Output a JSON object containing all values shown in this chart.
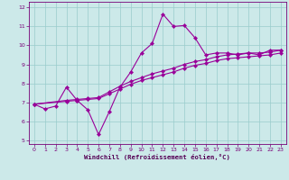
{
  "xlabel": "Windchill (Refroidissement éolien,°C)",
  "bg_color": "#cce9e9",
  "grid_color": "#99cccc",
  "line_color": "#990099",
  "xlim": [
    -0.5,
    23.5
  ],
  "ylim": [
    4.8,
    12.3
  ],
  "yticks": [
    5,
    6,
    7,
    8,
    9,
    10,
    11,
    12
  ],
  "xticks": [
    0,
    1,
    2,
    3,
    4,
    5,
    6,
    7,
    8,
    9,
    10,
    11,
    12,
    13,
    14,
    15,
    16,
    17,
    18,
    19,
    20,
    21,
    22,
    23
  ],
  "line1_x": [
    0,
    1,
    2,
    3,
    4,
    5,
    6,
    7,
    8,
    9,
    10,
    11,
    12,
    13,
    14,
    15,
    16,
    17,
    18,
    19,
    20,
    21,
    22,
    23
  ],
  "line1_y": [
    6.9,
    6.65,
    6.8,
    7.8,
    7.1,
    6.6,
    5.3,
    6.5,
    7.8,
    8.6,
    9.6,
    10.1,
    11.65,
    11.0,
    11.05,
    10.4,
    9.5,
    9.6,
    9.6,
    9.5,
    9.6,
    9.5,
    9.75,
    9.75
  ],
  "line2_x": [
    0,
    3,
    4,
    5,
    6,
    7,
    8,
    9,
    10,
    11,
    12,
    13,
    14,
    15,
    16,
    17,
    18,
    19,
    20,
    21,
    22,
    23
  ],
  "line2_y": [
    6.9,
    7.1,
    7.15,
    7.2,
    7.25,
    7.55,
    7.85,
    8.1,
    8.3,
    8.5,
    8.65,
    8.8,
    9.0,
    9.15,
    9.25,
    9.4,
    9.5,
    9.55,
    9.6,
    9.6,
    9.65,
    9.75
  ],
  "line3_x": [
    0,
    3,
    4,
    5,
    6,
    7,
    8,
    9,
    10,
    11,
    12,
    13,
    14,
    15,
    16,
    17,
    18,
    19,
    20,
    21,
    22,
    23
  ],
  "line3_y": [
    6.9,
    7.05,
    7.1,
    7.15,
    7.2,
    7.45,
    7.7,
    7.95,
    8.15,
    8.3,
    8.45,
    8.6,
    8.8,
    8.95,
    9.05,
    9.2,
    9.3,
    9.35,
    9.4,
    9.45,
    9.5,
    9.6
  ]
}
